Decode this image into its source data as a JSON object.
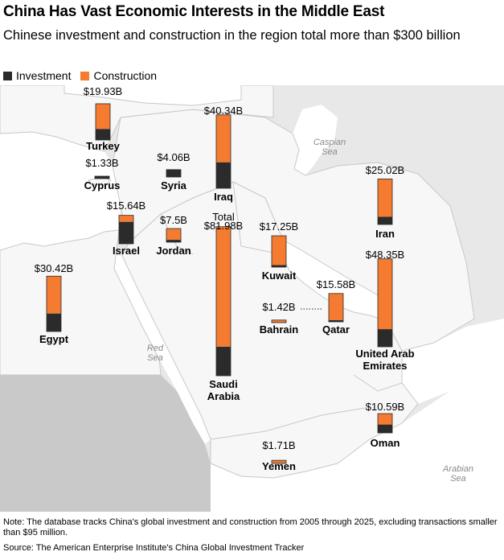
{
  "title": "China Has Vast Economic Interests in the Middle East",
  "subtitle": "Chinese investment and construction in the region total more than $300 billion",
  "legend": {
    "investment": "Investment",
    "construction": "Construction"
  },
  "colors": {
    "investment": "#2b2b2b",
    "construction": "#f47b30",
    "land": "#e8e8e8",
    "focus_land": "#f7f7f7",
    "water": "#ffffff",
    "border": "#c8c8c8",
    "outside": "#c9c9c9"
  },
  "water_labels": [
    "Caspian Sea",
    "Red Sea",
    "Arabian Sea"
  ],
  "total_label": "Total",
  "chart_data": {
    "type": "bar",
    "title": "China Has Vast Economic Interests in the Middle East",
    "subtitle": "Chinese investment and construction in the region total more than $300 billion",
    "unit": "USD billions",
    "series": [
      {
        "name": "Investment"
      },
      {
        "name": "Construction"
      }
    ],
    "countries": [
      {
        "name": "Turkey",
        "total_label": "$19.93B",
        "total": 19.93,
        "investment": 6.1,
        "construction": 13.83
      },
      {
        "name": "Cyprus",
        "total_label": "$1.33B",
        "total": 1.33,
        "investment": 1.33,
        "construction": 0
      },
      {
        "name": "Syria",
        "total_label": "$4.06B",
        "total": 4.06,
        "investment": 4.06,
        "construction": 0
      },
      {
        "name": "Iraq",
        "total_label": "$40.34B",
        "total": 40.34,
        "investment": 14.3,
        "construction": 26.04
      },
      {
        "name": "Iran",
        "total_label": "$25.02B",
        "total": 25.02,
        "investment": 4.2,
        "construction": 20.82
      },
      {
        "name": "Israel",
        "total_label": "$15.64B",
        "total": 15.64,
        "investment": 12.1,
        "construction": 3.54
      },
      {
        "name": "Jordan",
        "total_label": "$7.5B",
        "total": 7.5,
        "investment": 1.3,
        "construction": 6.2
      },
      {
        "name": "Saudi Arabia",
        "total_label": "$81.98B",
        "total": 81.98,
        "investment": 16.0,
        "construction": 65.98
      },
      {
        "name": "Kuwait",
        "total_label": "$17.25B",
        "total": 17.25,
        "investment": 1.1,
        "construction": 16.15
      },
      {
        "name": "United Arab Emirates",
        "total_label": "$48.35B",
        "total": 48.35,
        "investment": 9.7,
        "construction": 38.65
      },
      {
        "name": "Egypt",
        "total_label": "$30.42B",
        "total": 30.42,
        "investment": 9.9,
        "construction": 20.52
      },
      {
        "name": "Bahrain",
        "total_label": "$1.42B",
        "total": 1.42,
        "investment": 0.2,
        "construction": 1.22
      },
      {
        "name": "Qatar",
        "total_label": "$15.58B",
        "total": 15.58,
        "investment": 1.0,
        "construction": 14.58
      },
      {
        "name": "Oman",
        "total_label": "$10.59B",
        "total": 10.59,
        "investment": 4.6,
        "construction": 5.99
      },
      {
        "name": "Yemen",
        "total_label": "$1.71B",
        "total": 1.71,
        "investment": 0.2,
        "construction": 1.51
      }
    ]
  },
  "note": "Note: The database tracks China's global investment and construction from 2005 through 2025, excluding transactions smaller than $95 million.",
  "source": "Source: The American Enterprise Institute's China Global Investment Tracker"
}
